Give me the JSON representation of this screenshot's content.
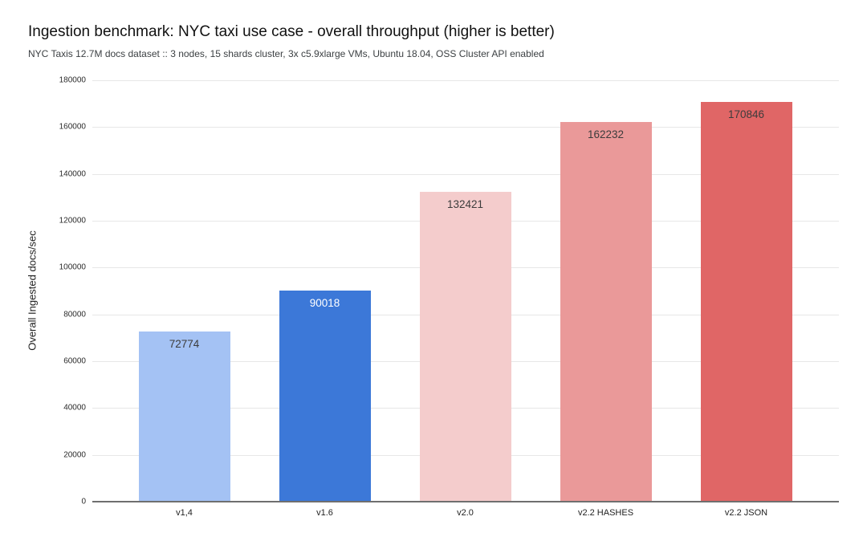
{
  "header": {
    "title": "Ingestion benchmark: NYC taxi use case - overall throughput (higher is better)",
    "subtitle": "NYC Taxis 12.7M docs dataset :: 3 nodes, 15 shards cluster, 3x c5.9xlarge VMs, Ubuntu 18.04, OSS Cluster API enabled"
  },
  "chart_data": {
    "type": "bar",
    "title": "Ingestion benchmark: NYC taxi use case - overall throughput (higher is better)",
    "subtitle": "NYC Taxis 12.7M docs dataset :: 3 nodes, 15 shards cluster, 3x c5.9xlarge VMs, Ubuntu 18.04, OSS Cluster API enabled",
    "categories": [
      "v1,4",
      "v1.6",
      "v2.0",
      "v2.2 HASHES",
      "v2.2 JSON"
    ],
    "values": [
      72774,
      90018,
      132421,
      162232,
      170846
    ],
    "value_labels": [
      "72774",
      "90018",
      "132421",
      "162232",
      "170846"
    ],
    "bar_colors": [
      "#a4c2f4",
      "#3c78d8",
      "#f4cccc",
      "#ea9999",
      "#e06666"
    ],
    "value_label_colors": [
      "#3c3c3c",
      "#ffffff",
      "#3c3c3c",
      "#3c3c3c",
      "#3c3c3c"
    ],
    "xlabel": "",
    "ylabel": "Overall Ingested docs/sec",
    "ylim": [
      0,
      180000
    ],
    "yticks": [
      0,
      20000,
      40000,
      60000,
      80000,
      100000,
      120000,
      140000,
      160000,
      180000
    ],
    "ytick_labels": [
      "0",
      "20000",
      "40000",
      "60000",
      "80000",
      "100000",
      "120000",
      "140000",
      "160000",
      "180000"
    ],
    "grid": "horizontal",
    "legend": "none",
    "background": "#ffffff"
  },
  "colors": {
    "gridline": "#e7e7e7",
    "axis_baseline": "#6f6f6f",
    "title_text": "#111111",
    "subtitle_text": "#3c4043",
    "tick_text": "#2b2b2b"
  }
}
